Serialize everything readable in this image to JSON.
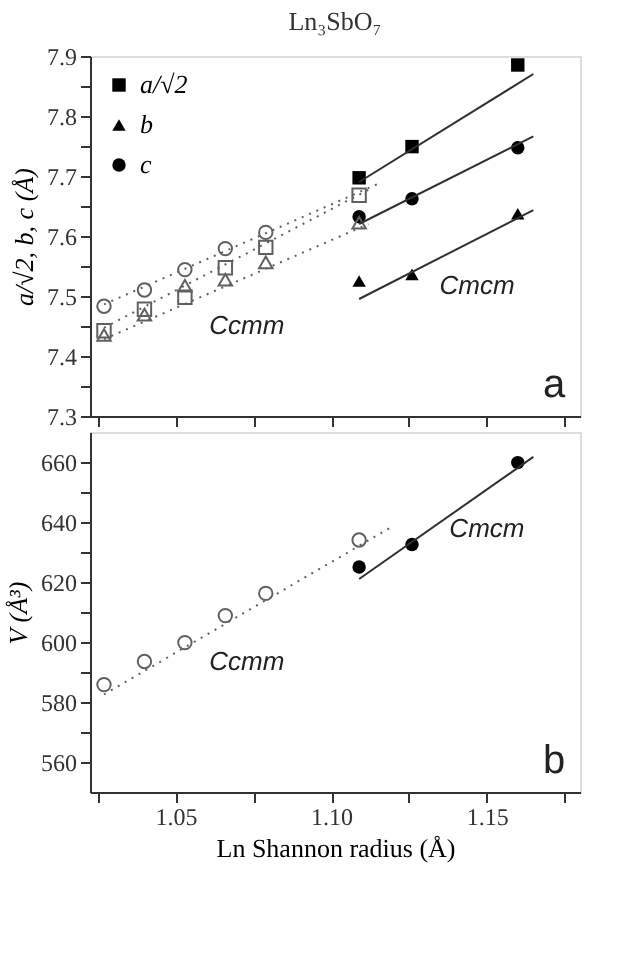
{
  "chart_data": [
    {
      "type": "scatter",
      "title": "Ln₃SbO₇",
      "ylabel": "a/√2, b, c (Å)",
      "xlim": [
        1.0225,
        1.18
      ],
      "ylim": [
        7.3,
        7.9
      ],
      "xticks": [
        {
          "value": 1.025,
          "label": null
        },
        {
          "value": 1.05,
          "label": null
        },
        {
          "value": 1.075,
          "label": null
        },
        {
          "value": 1.1,
          "label": null
        },
        {
          "value": 1.125,
          "label": null
        },
        {
          "value": 1.15,
          "label": null
        },
        {
          "value": 1.175,
          "label": null
        }
      ],
      "yticks": [
        7.3,
        {
          "value": 7.35,
          "label": null
        },
        7.4,
        {
          "value": 7.45,
          "label": null
        },
        7.5,
        {
          "value": 7.55,
          "label": null
        },
        7.6,
        {
          "value": 7.65,
          "label": null
        },
        7.7,
        {
          "value": 7.75,
          "label": null
        },
        7.8,
        {
          "value": 7.85,
          "label": null
        },
        7.9
      ],
      "tick_labels": "y",
      "grid": false,
      "legend": "top left",
      "series": [
        {
          "name": "a/√2",
          "type": "scatter",
          "marker": "square",
          "color": "#000000",
          "x": [
            1.109,
            1.126,
            1.16
          ],
          "values": [
            7.697,
            7.749,
            7.885
          ]
        },
        {
          "name": "b",
          "type": "scatter",
          "marker": "triangle",
          "color": "#000000",
          "x": [
            1.109,
            1.126,
            1.16
          ],
          "values": [
            7.525,
            7.536,
            7.637
          ]
        },
        {
          "name": "c",
          "type": "scatter",
          "marker": "circle",
          "color": "#000000",
          "x": [
            1.109,
            1.126,
            1.16
          ],
          "values": [
            7.632,
            7.662,
            7.747
          ]
        },
        {
          "type": "scatter",
          "marker": "square",
          "color": "#606060",
          "x": [
            1.027,
            1.04,
            1.053,
            1.066,
            1.079,
            1.109
          ],
          "values": [
            7.442,
            7.478,
            7.498,
            7.547,
            7.581,
            7.668
          ]
        },
        {
          "type": "scatter",
          "marker": "triangle",
          "color": "#606060",
          "x": [
            1.027,
            1.04,
            1.053,
            1.066,
            1.079,
            1.109
          ],
          "values": [
            7.435,
            7.469,
            7.517,
            7.527,
            7.556,
            7.622
          ]
        },
        {
          "type": "scatter",
          "marker": "circle",
          "color": "#606060",
          "x": [
            1.027,
            1.04,
            1.053,
            1.066,
            1.079
          ],
          "values": [
            7.483,
            7.51,
            7.544,
            7.579,
            7.606
          ]
        },
        {
          "type": "line",
          "line_style": "solid",
          "color": "#303030",
          "x": [
            1.109,
            1.165
          ],
          "values": [
            7.69,
            7.87
          ]
        },
        {
          "type": "line",
          "line_style": "solid",
          "color": "#303030",
          "x": [
            1.109,
            1.165
          ],
          "values": [
            7.62,
            7.766
          ]
        },
        {
          "type": "line",
          "line_style": "solid",
          "color": "#303030",
          "x": [
            1.109,
            1.165
          ],
          "values": [
            7.495,
            7.643
          ]
        },
        {
          "type": "line",
          "line_style": "dotted",
          "color": "#606060",
          "x": [
            1.027,
            1.112
          ],
          "values": [
            7.447,
            7.677
          ]
        },
        {
          "type": "line",
          "line_style": "dotted",
          "color": "#606060",
          "x": [
            1.027,
            1.112
          ],
          "values": [
            7.428,
            7.62
          ]
        },
        {
          "type": "line",
          "line_style": "dotted",
          "color": "#606060",
          "x": [
            1.027,
            1.116
          ],
          "values": [
            7.486,
            7.689
          ]
        }
      ],
      "annotations": [
        "Ccmm",
        "Cmcm",
        "a"
      ]
    },
    {
      "type": "scatter",
      "xlabel": "Ln Shannon radius (Å)",
      "ylabel": "V (Å³)",
      "xlim": [
        1.0225,
        1.18
      ],
      "ylim": [
        550,
        670
      ],
      "xticks": [
        {
          "value": 1.025,
          "label": null
        },
        {
          "value": 1.05,
          "label": "1.05"
        },
        {
          "value": 1.075,
          "label": null
        },
        {
          "value": 1.1,
          "label": "1.10"
        },
        {
          "value": 1.125,
          "label": null
        },
        {
          "value": 1.15,
          "label": "1.15"
        },
        {
          "value": 1.175,
          "label": null
        }
      ],
      "yticks": [
        560,
        {
          "value": 570,
          "label": null
        },
        580,
        {
          "value": 590,
          "label": null
        },
        600,
        {
          "value": 610,
          "label": null
        },
        620,
        {
          "value": 630,
          "label": null
        },
        640,
        {
          "value": 650,
          "label": null
        },
        660
      ],
      "grid": false,
      "series": [
        {
          "type": "scatter",
          "marker": "circle",
          "color": "#000000",
          "x": [
            1.109,
            1.126,
            1.16
          ],
          "values": [
            625.0,
            632.5,
            659.8
          ]
        },
        {
          "type": "scatter",
          "marker": "circle",
          "color": "#606060",
          "x": [
            1.027,
            1.04,
            1.053,
            1.066,
            1.079,
            1.109
          ],
          "values": [
            585.8,
            593.5,
            599.8,
            608.8,
            616.2,
            634.0
          ]
        },
        {
          "type": "line",
          "line_style": "solid",
          "color": "#303030",
          "x": [
            1.109,
            1.165
          ],
          "values": [
            621,
            661.7
          ]
        },
        {
          "type": "line",
          "line_style": "dotted",
          "color": "#606060",
          "x": [
            1.027,
            1.12
          ],
          "values": [
            582.5,
            638.7
          ]
        }
      ],
      "annotations": [
        "Ccmm",
        "Cmcm",
        "b"
      ]
    }
  ]
}
